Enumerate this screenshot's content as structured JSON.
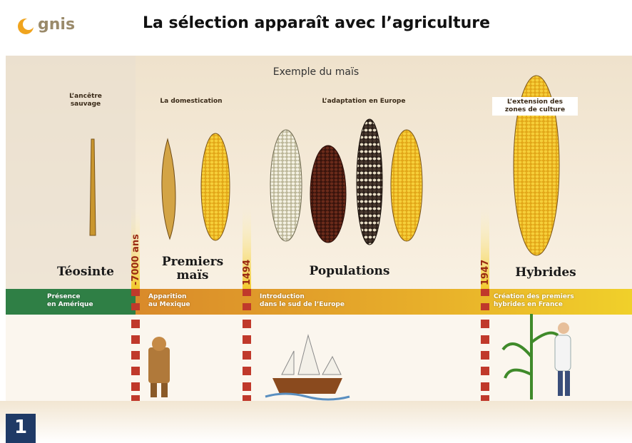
{
  "header": {
    "logo": "gnis",
    "title": "La sélection apparaît avec l’agriculture"
  },
  "subtitle": "Exemple du maïs",
  "stages": [
    {
      "lines": [
        "L’ancêtre",
        "sauvage"
      ]
    },
    {
      "lines": [
        "La domestication"
      ]
    },
    {
      "lines": [
        "L’adaptation en Europe"
      ]
    },
    {
      "lines": [
        "L’extension des",
        "zones de culture"
      ]
    }
  ],
  "varieties": [
    {
      "lines": [
        "Téosinte"
      ]
    },
    {
      "lines": [
        "Premiers",
        "maïs"
      ]
    },
    {
      "lines": [
        "Populations"
      ]
    },
    {
      "lines": [
        "Hybrides"
      ]
    }
  ],
  "dates": [
    "-7000 ans",
    "1494",
    "1947"
  ],
  "timeline": [
    {
      "lines": [
        "Présence",
        "en Amérique"
      ]
    },
    {
      "lines": [
        "Apparition",
        "au Mexique"
      ]
    },
    {
      "lines": [
        "Introduction",
        "dans le sud de l’Europe"
      ]
    },
    {
      "lines": [
        "Création des premiers",
        "hybrides en France"
      ]
    }
  ],
  "slide_number": "1"
}
